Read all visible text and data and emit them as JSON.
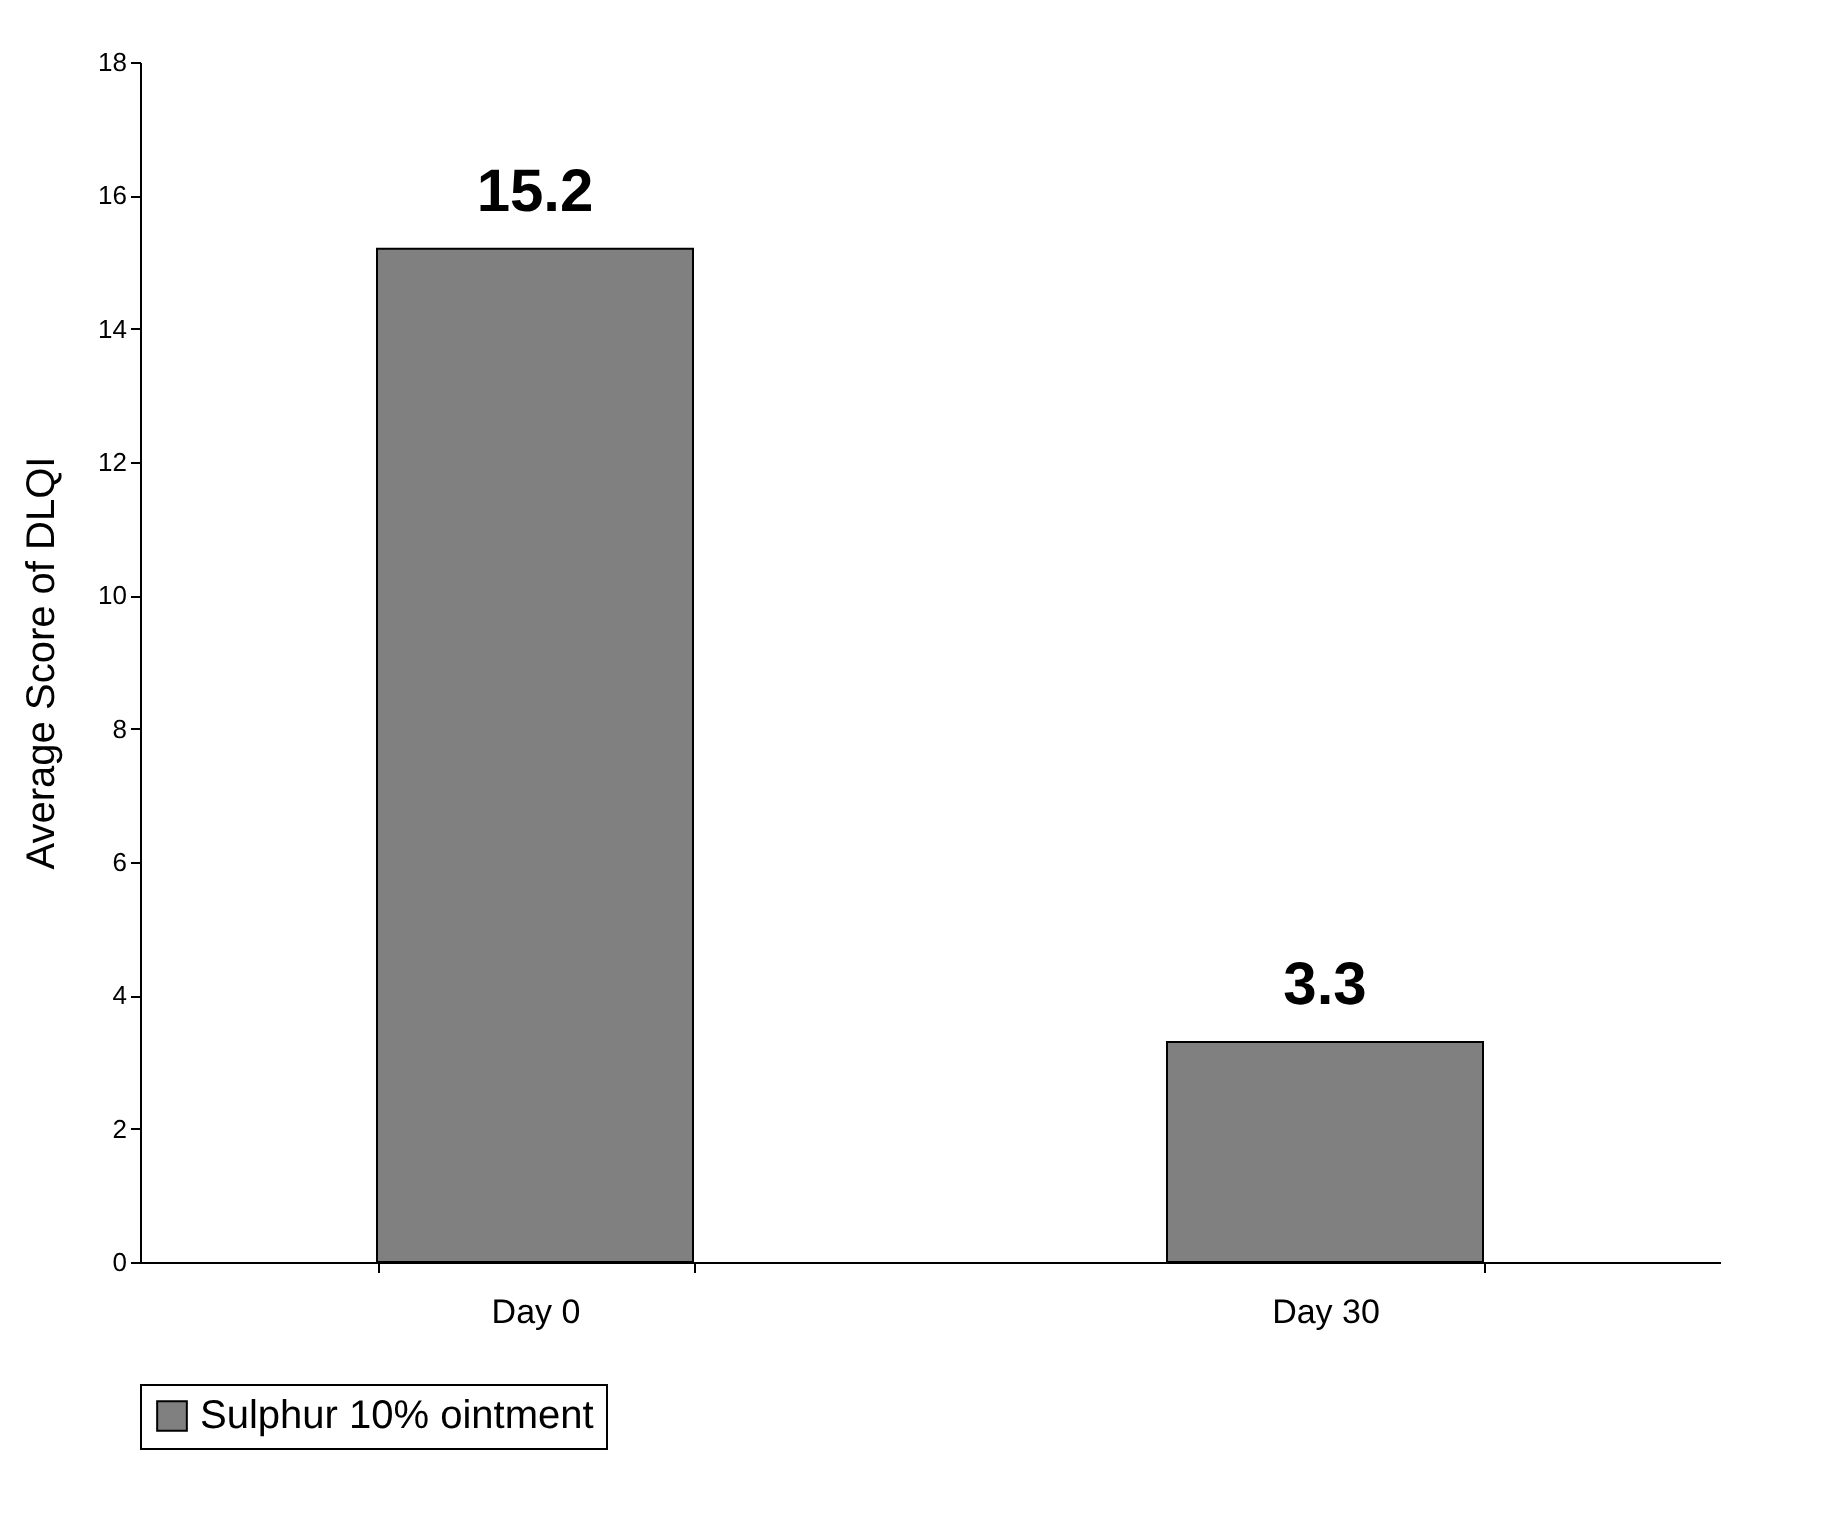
{
  "chart_data": {
    "type": "bar",
    "ylabel": "Average Score of DLQI",
    "categories": [
      "Day 0",
      "Day 30"
    ],
    "series": [
      {
        "name": "Sulphur 10% ointment",
        "color": "#808080",
        "values": [
          15.2,
          3.3
        ]
      }
    ],
    "ylim": [
      0,
      18
    ],
    "yticks": [
      0,
      2,
      4,
      6,
      8,
      10,
      12,
      14,
      16,
      18
    ],
    "grid": false,
    "legend": "bottom",
    "data_labels": true
  }
}
